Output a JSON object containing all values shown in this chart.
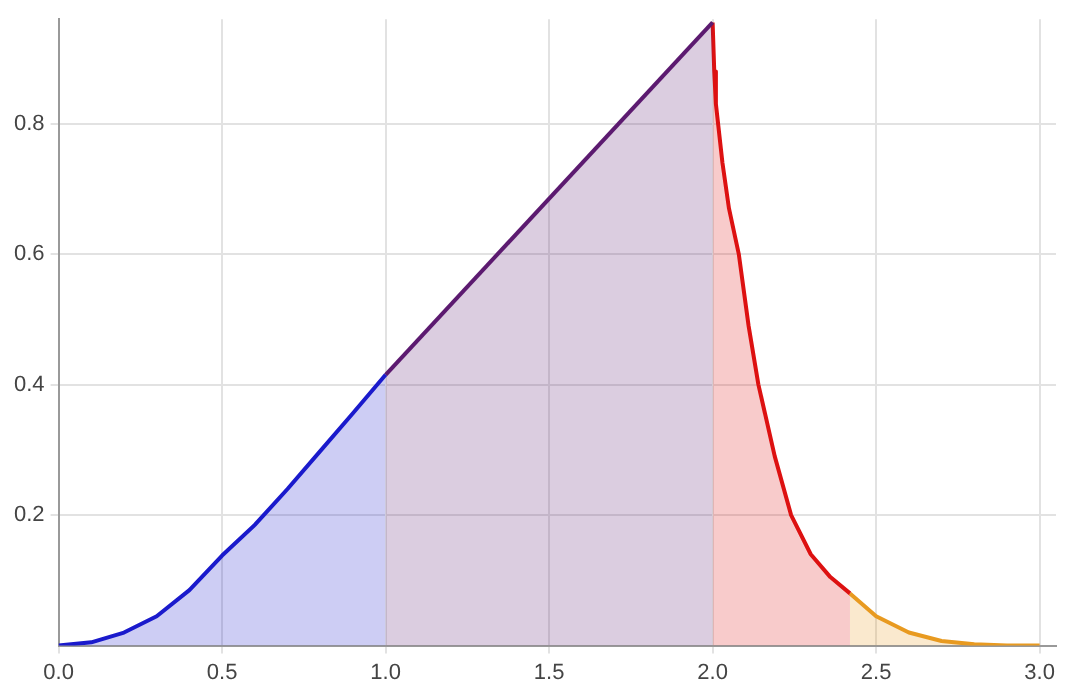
{
  "chart_data": {
    "type": "area",
    "xlim": [
      0,
      3.05
    ],
    "ylim": [
      0,
      0.96
    ],
    "xticks": [
      {
        "value": 0,
        "label": "0.0"
      },
      0.5,
      {
        "value": 1,
        "label": "1.0"
      },
      1.5,
      {
        "value": 2,
        "label": "2.0"
      },
      2.5,
      {
        "value": 3,
        "label": "3.0"
      }
    ],
    "yticks": [
      0.2,
      0.4,
      0.6,
      0.8
    ],
    "grid": true,
    "legend": false,
    "marker": "none",
    "line_style": "solid",
    "series": [
      {
        "color": "#1a1acc",
        "x": [
          0,
          0.1,
          0.2,
          0.3,
          0.4,
          0.5,
          0.6,
          0.7,
          0.8,
          0.9,
          1.0
        ],
        "values": [
          0,
          0.005,
          0.02,
          0.045,
          0.085,
          0.138,
          0.185,
          0.24,
          0.298,
          0.356,
          0.415
        ]
      },
      {
        "color": "#5c1a70",
        "x": [
          1.0,
          2.0
        ],
        "values": [
          0.415,
          0.955
        ]
      },
      {
        "color": "#dd1111",
        "x": [
          2.0,
          2.005,
          2.01,
          2.03,
          2.05,
          2.08,
          2.11,
          2.14,
          2.19,
          2.24,
          2.3,
          2.36,
          2.42
        ],
        "values": [
          0.955,
          0.88,
          0.83,
          0.74,
          0.67,
          0.6,
          0.49,
          0.4,
          0.29,
          0.2,
          0.14,
          0.105,
          0.08
        ]
      },
      {
        "color": "#e89a20",
        "x": [
          2.42,
          2.5,
          2.6,
          2.7,
          2.8,
          2.9,
          3.0
        ],
        "values": [
          0.08,
          0.045,
          0.02,
          0.007,
          0.002,
          0,
          0
        ]
      }
    ]
  }
}
